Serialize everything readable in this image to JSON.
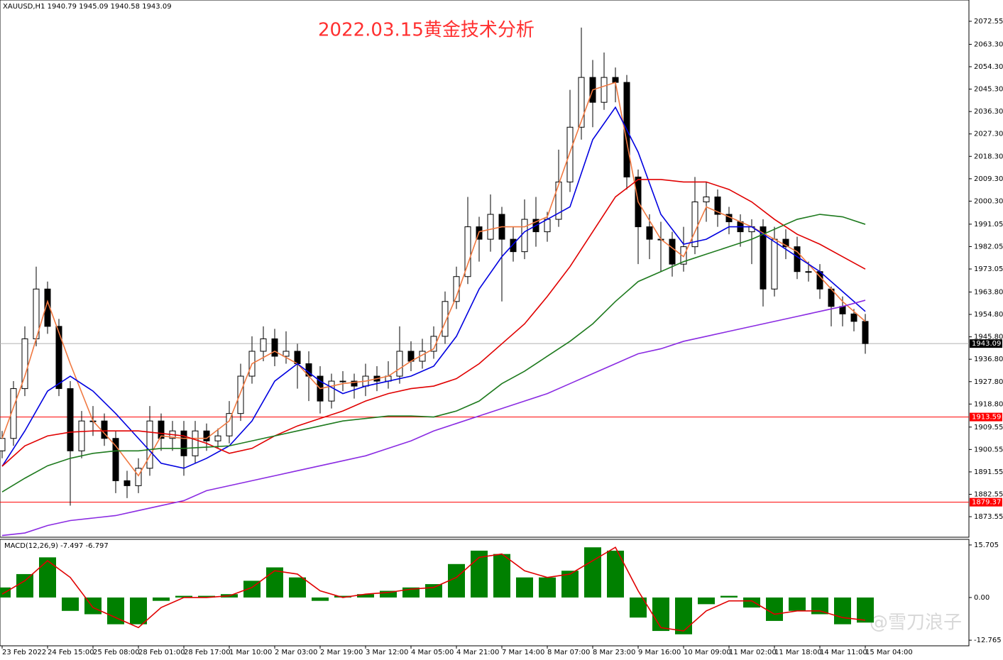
{
  "chart_data": [
    {
      "type": "candlestick",
      "header": "XAUUSD,H1  1940.79 1945.09 1940.58 1943.09",
      "title": "2022.03.15黄金技术分析",
      "xtick_labels": [
        "23 Feb 2022",
        "24 Feb 15:00",
        "25 Feb 08:00",
        "28 Feb 01:00",
        "28 Feb 17:00",
        "1 Mar 10:00",
        "2 Mar 03:00",
        "2 Mar 19:00",
        "3 Mar 12:00",
        "4 Mar 05:00",
        "4 Mar 21:00",
        "7 Mar 14:00",
        "8 Mar 07:00",
        "8 Mar 23:00",
        "9 Mar 16:00",
        "10 Mar 09:00",
        "11 Mar 02:00",
        "11 Mar 18:00",
        "14 Mar 11:00",
        "15 Mar 04:00"
      ],
      "open": [
        1900,
        1905,
        1925,
        1945,
        1965,
        1950,
        1925,
        1900,
        1912,
        1912,
        1905,
        1888,
        1886,
        1893,
        1912,
        1905,
        1908,
        1898,
        1908,
        1904,
        1906,
        1915,
        1930,
        1940,
        1945,
        1938,
        1940,
        1935,
        1930,
        1920,
        1928,
        1928,
        1926,
        1930,
        1928,
        1930,
        1940,
        1936,
        1940,
        1946,
        1960,
        1970,
        1990,
        1985,
        1995,
        1985,
        1980,
        1993,
        1988,
        1993,
        2008,
        2030,
        2050,
        2040,
        2050,
        2048,
        2010,
        1990,
        1985,
        1985,
        1975,
        1982,
        2000,
        2002,
        1995,
        1992,
        1988,
        1990,
        1965,
        1985,
        1982,
        1972,
        1972,
        1965,
        1958,
        1955,
        1952
      ],
      "high": [
        1908,
        1928,
        1950,
        1974,
        1968,
        1953,
        1928,
        1916,
        1918,
        1915,
        1908,
        1892,
        1897,
        1918,
        1915,
        1912,
        1912,
        1912,
        1911,
        1909,
        1920,
        1935,
        1946,
        1950,
        1949,
        1948,
        1943,
        1940,
        1934,
        1931,
        1932,
        1931,
        1935,
        1934,
        1936,
        1950,
        1944,
        1945,
        1950,
        1964,
        1974,
        2002,
        1994,
        2003,
        1998,
        1990,
        2001,
        2002,
        1996,
        2021,
        2045,
        2070,
        2057,
        2060,
        2054,
        2051,
        2013,
        1995,
        1992,
        1988,
        1990,
        2010,
        2008,
        2005,
        1998,
        1995,
        1993,
        1993,
        1990,
        1989,
        1986,
        1976,
        1975,
        1966,
        1962,
        1957,
        1955
      ],
      "low": [
        1897,
        1902,
        1922,
        1942,
        1947,
        1922,
        1878,
        1897,
        1906,
        1902,
        1883,
        1881,
        1883,
        1890,
        1900,
        1900,
        1890,
        1895,
        1900,
        1901,
        1903,
        1912,
        1927,
        1936,
        1934,
        1935,
        1925,
        1920,
        1915,
        1917,
        1924,
        1921,
        1922,
        1924,
        1925,
        1927,
        1932,
        1933,
        1937,
        1943,
        1957,
        1967,
        1976,
        1980,
        1960,
        1976,
        1977,
        1982,
        1984,
        1990,
        2004,
        2025,
        2030,
        2037,
        2040,
        2005,
        1975,
        1977,
        1972,
        1970,
        1972,
        1979,
        1992,
        1990,
        1987,
        1982,
        1975,
        1958,
        1962,
        1977,
        1969,
        1968,
        1961,
        1950,
        1950,
        1948,
        1939
      ],
      "close": [
        1905,
        1925,
        1945,
        1965,
        1950,
        1925,
        1900,
        1912,
        1912,
        1905,
        1888,
        1886,
        1893,
        1912,
        1905,
        1908,
        1898,
        1908,
        1904,
        1906,
        1915,
        1930,
        1940,
        1945,
        1938,
        1940,
        1935,
        1930,
        1920,
        1928,
        1928,
        1926,
        1930,
        1928,
        1930,
        1940,
        1936,
        1940,
        1946,
        1960,
        1970,
        1990,
        1985,
        1995,
        1985,
        1980,
        1993,
        1988,
        1993,
        2008,
        2030,
        2050,
        2040,
        2050,
        2048,
        2010,
        1990,
        1985,
        1985,
        1975,
        1982,
        2000,
        2002,
        1995,
        1992,
        1988,
        1990,
        1965,
        1985,
        1982,
        1972,
        1972,
        1965,
        1958,
        1955,
        1952,
        1943.09
      ],
      "up_color": "#ffffff",
      "down_color": "#000000",
      "series": [
        {
          "color": "#f07840",
          "values": [
            1905,
            1930,
            1960,
            1935,
            1912,
            1902,
            1890,
            1906,
            1905,
            1905,
            1912,
            1935,
            1940,
            1935,
            1925,
            1927,
            1928,
            1930,
            1936,
            1941,
            1962,
            1988,
            1990,
            1990,
            1994,
            2020,
            2045,
            2048,
            2000,
            1985,
            1978,
            1998,
            1994,
            1990,
            1985,
            1980,
            1970,
            1960,
            1952
          ]
        },
        {
          "color": "#0000e0",
          "values": [
            1893.8,
            1908,
            1924,
            1930,
            1924,
            1915,
            1905,
            1895,
            1893,
            1897,
            1902,
            1912,
            1928,
            1935,
            1928,
            1923,
            1926,
            1928,
            1930,
            1934,
            1946,
            1965,
            1978,
            1988,
            1993,
            1998,
            2025,
            2038,
            2020,
            1995,
            1983,
            1985,
            1990,
            1990,
            1984,
            1978,
            1972,
            1964,
            1956
          ]
        },
        {
          "color": "#e00000",
          "values": [
            1893.8,
            1902,
            1906,
            1907.5,
            1908,
            1908,
            1908,
            1907,
            1906,
            1903,
            1899,
            1901,
            1906,
            1910,
            1913,
            1916,
            1920,
            1923,
            1925,
            1926,
            1929,
            1935,
            1943,
            1951,
            1962,
            1974,
            1988,
            2002,
            2009,
            2009,
            2008,
            2008,
            2005,
            2000,
            1993,
            1987,
            1983,
            1978,
            1973
          ]
        },
        {
          "color": "#1e7a1e",
          "values": [
            1883.5,
            1889,
            1894,
            1897,
            1899,
            1900,
            1900,
            1901,
            1901,
            1901.5,
            1902,
            1904,
            1906,
            1908,
            1910,
            1912,
            1913,
            1914,
            1914,
            1913.6,
            1916,
            1920,
            1927,
            1932,
            1938,
            1944,
            1951,
            1960,
            1968,
            1972,
            1976,
            1979,
            1982,
            1985,
            1989,
            1993,
            1995,
            1994,
            1991
          ]
        },
        {
          "color": "#8a2be2",
          "values": [
            1866,
            1867,
            1870,
            1872,
            1873,
            1874,
            1876,
            1878,
            1880,
            1884,
            1886,
            1888,
            1890,
            1892,
            1894,
            1896,
            1898,
            1901,
            1904,
            1908,
            1911,
            1914,
            1917,
            1920,
            1923,
            1927,
            1931,
            1935,
            1939,
            1941,
            1944,
            1946,
            1948,
            1950,
            1952,
            1954,
            1956,
            1958,
            1960.5
          ]
        }
      ],
      "levels": [
        {
          "value": 1913.59,
          "color": "#ff0000"
        },
        {
          "value": 1879.37,
          "color": "#ff0000"
        }
      ],
      "last_price": 1943.09,
      "ylim": [
        1865.3,
        2081.1
      ],
      "yticks": [
        2072.55,
        {
          "value": 2063.3,
          "label": "2063.30"
        },
        {
          "value": 2054.3,
          "label": "2054.30"
        },
        {
          "value": 2045.3,
          "label": "2045.30"
        },
        {
          "value": 2036.3,
          "label": "2036.30"
        },
        {
          "value": 2027.3,
          "label": "2027.30"
        },
        {
          "value": 2018.3,
          "label": "2018.30"
        },
        {
          "value": 2009.3,
          "label": "2009.30"
        },
        {
          "value": 2000.3,
          "label": "2000.30"
        },
        1991.05,
        1982.05,
        1973.05,
        {
          "value": 1963.8,
          "label": "1963.80"
        },
        {
          "value": 1954.8,
          "label": "1954.80"
        },
        {
          "value": 1945.8,
          "label": "1945.80"
        },
        {
          "value": 1936.8,
          "label": "1936.80"
        },
        {
          "value": 1927.8,
          "label": "1927.80"
        },
        {
          "value": 1918.8,
          "label": "1918.80"
        },
        1909.55,
        1900.55,
        1891.55,
        1882.55,
        1873.55
      ]
    },
    {
      "type": "macd",
      "header": "MACD(12,26,9) -7.497 -6.797",
      "histogram": {
        "color": "#008000",
        "values": [
          3,
          7,
          12,
          -4,
          -5,
          -8,
          -8,
          -1,
          0.5,
          0.5,
          1,
          5,
          9,
          6,
          -1,
          0.5,
          1,
          2,
          3,
          4,
          10,
          14,
          13,
          6,
          6,
          8,
          15,
          14,
          -6,
          -10,
          -11,
          -2,
          0.5,
          -3,
          -7,
          -4,
          -5,
          -8,
          -7.497
        ]
      },
      "signal": {
        "color": "#e00000",
        "values": [
          1,
          5,
          11,
          6,
          -3,
          -6,
          -9,
          -3,
          0,
          0,
          0.5,
          3,
          8,
          7,
          2,
          0,
          1,
          1.5,
          2.5,
          3,
          6,
          12,
          13,
          8,
          6,
          7,
          11,
          15,
          2,
          -9,
          -10,
          -4,
          -1,
          -1,
          -5,
          -4,
          -4,
          -6,
          -6.797
        ]
      },
      "ylim": [
        -14.44,
        17.38
      ],
      "yticks": [
        15.705,
        {
          "value": 0,
          "label": "0.00"
        },
        -12.765
      ]
    }
  ],
  "watermark": "@雪刀浪子"
}
